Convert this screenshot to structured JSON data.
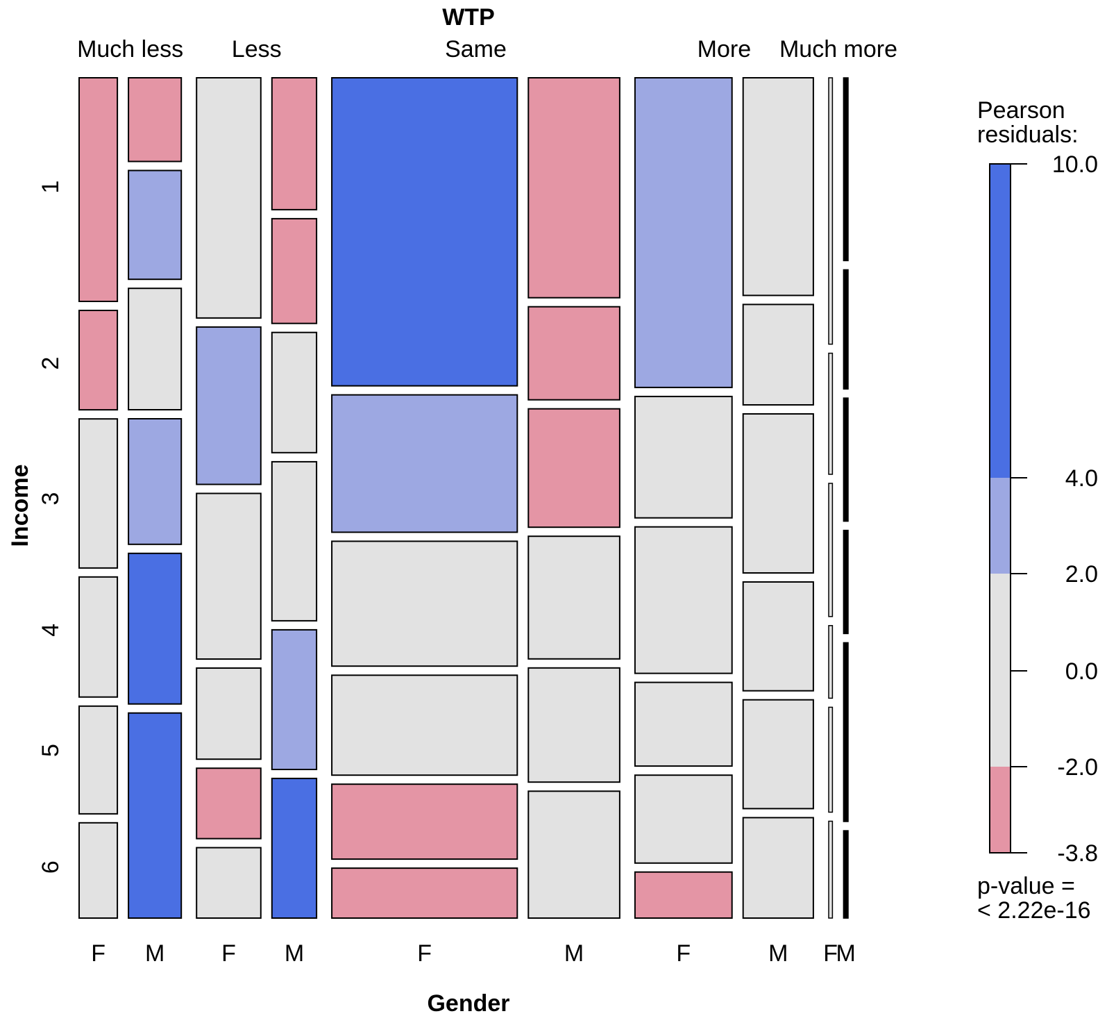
{
  "chart_data": {
    "type": "mosaic",
    "title": "WTP",
    "xlabel": "Gender",
    "ylabel": "Income",
    "wtp_levels": [
      "Much less",
      "Less",
      "Same",
      "More",
      "Much more"
    ],
    "gender_levels": [
      "F",
      "M"
    ],
    "income_levels": [
      "1",
      "2",
      "3",
      "4",
      "5",
      "6"
    ],
    "wtp_proportions": [
      0.126,
      0.148,
      0.355,
      0.22,
      0.024
    ],
    "gender_proportions_within_wtp": [
      [
        0.42,
        0.58
      ],
      [
        0.59,
        0.41
      ],
      [
        0.67,
        0.33
      ],
      [
        0.58,
        0.42
      ],
      [
        0.45,
        0.55
      ]
    ],
    "income_proportions": {
      "Much less": {
        "F": [
          0.27,
          0.12,
          0.18,
          0.145,
          0.13,
          0.115
        ],
        "M": [
          0.1,
          0.13,
          0.145,
          0.15,
          0.18,
          0.245
        ]
      },
      "Less": {
        "F": [
          0.29,
          0.19,
          0.2,
          0.11,
          0.085,
          0.085
        ],
        "M": [
          0.17,
          0.135,
          0.155,
          0.205,
          0.18,
          0.18
        ]
      },
      "Same": {
        "F": [
          0.37,
          0.165,
          0.15,
          0.12,
          0.09,
          0.06
        ],
        "M": [
          0.26,
          0.11,
          0.14,
          0.145,
          0.135,
          0.15
        ]
      },
      "More": {
        "F": [
          0.37,
          0.145,
          0.175,
          0.1,
          0.105,
          0.055
        ],
        "M": [
          0.26,
          0.12,
          0.19,
          0.13,
          0.13,
          0.12
        ]
      },
      "Much more": {
        "F": [
          0.33,
          0.15,
          0.165,
          0.09,
          0.13,
          0.12
        ],
        "M": [
          0.23,
          0.15,
          0.155,
          0.13,
          0.225,
          0.11
        ]
      }
    },
    "residual_classes": {
      "Much less": {
        "F": [
          "red",
          "red",
          "gray",
          "gray",
          "gray",
          "gray"
        ],
        "M": [
          "red",
          "lightblue",
          "gray",
          "lightblue",
          "blue",
          "blue"
        ]
      },
      "Less": {
        "F": [
          "gray",
          "lightblue",
          "gray",
          "gray",
          "red",
          "gray"
        ],
        "M": [
          "red",
          "red",
          "gray",
          "gray",
          "lightblue",
          "blue"
        ]
      },
      "Same": {
        "F": [
          "blue",
          "lightblue",
          "gray",
          "gray",
          "red",
          "red"
        ],
        "M": [
          "red",
          "red",
          "red",
          "gray",
          "gray",
          "gray"
        ]
      },
      "More": {
        "F": [
          "lightblue",
          "gray",
          "gray",
          "gray",
          "gray",
          "red"
        ],
        "M": [
          "gray",
          "gray",
          "gray",
          "gray",
          "gray",
          "gray"
        ]
      },
      "Much more": {
        "F": [
          "gray",
          "gray",
          "gray",
          "gray",
          "gray",
          "gray"
        ],
        "M": [
          "gray",
          "gray",
          "gray",
          "gray",
          "gray",
          "gray"
        ]
      }
    },
    "legend": {
      "title_line1": "Pearson",
      "title_line2": "residuals:",
      "breaks": [
        "10.0",
        "4.0",
        "2.0",
        "0.0",
        "-2.0",
        "-3.8"
      ],
      "break_values": [
        10.0,
        4.0,
        2.0,
        0.0,
        -2.0,
        -3.8
      ],
      "pvalue_line1": "p-value =",
      "pvalue_line2": "< 2.22e-16"
    },
    "colors": {
      "blue": "#4a6fe3",
      "lightblue": "#9da8e2",
      "gray": "#e2e2e2",
      "red": "#e495a5",
      "border": "#000000"
    }
  }
}
